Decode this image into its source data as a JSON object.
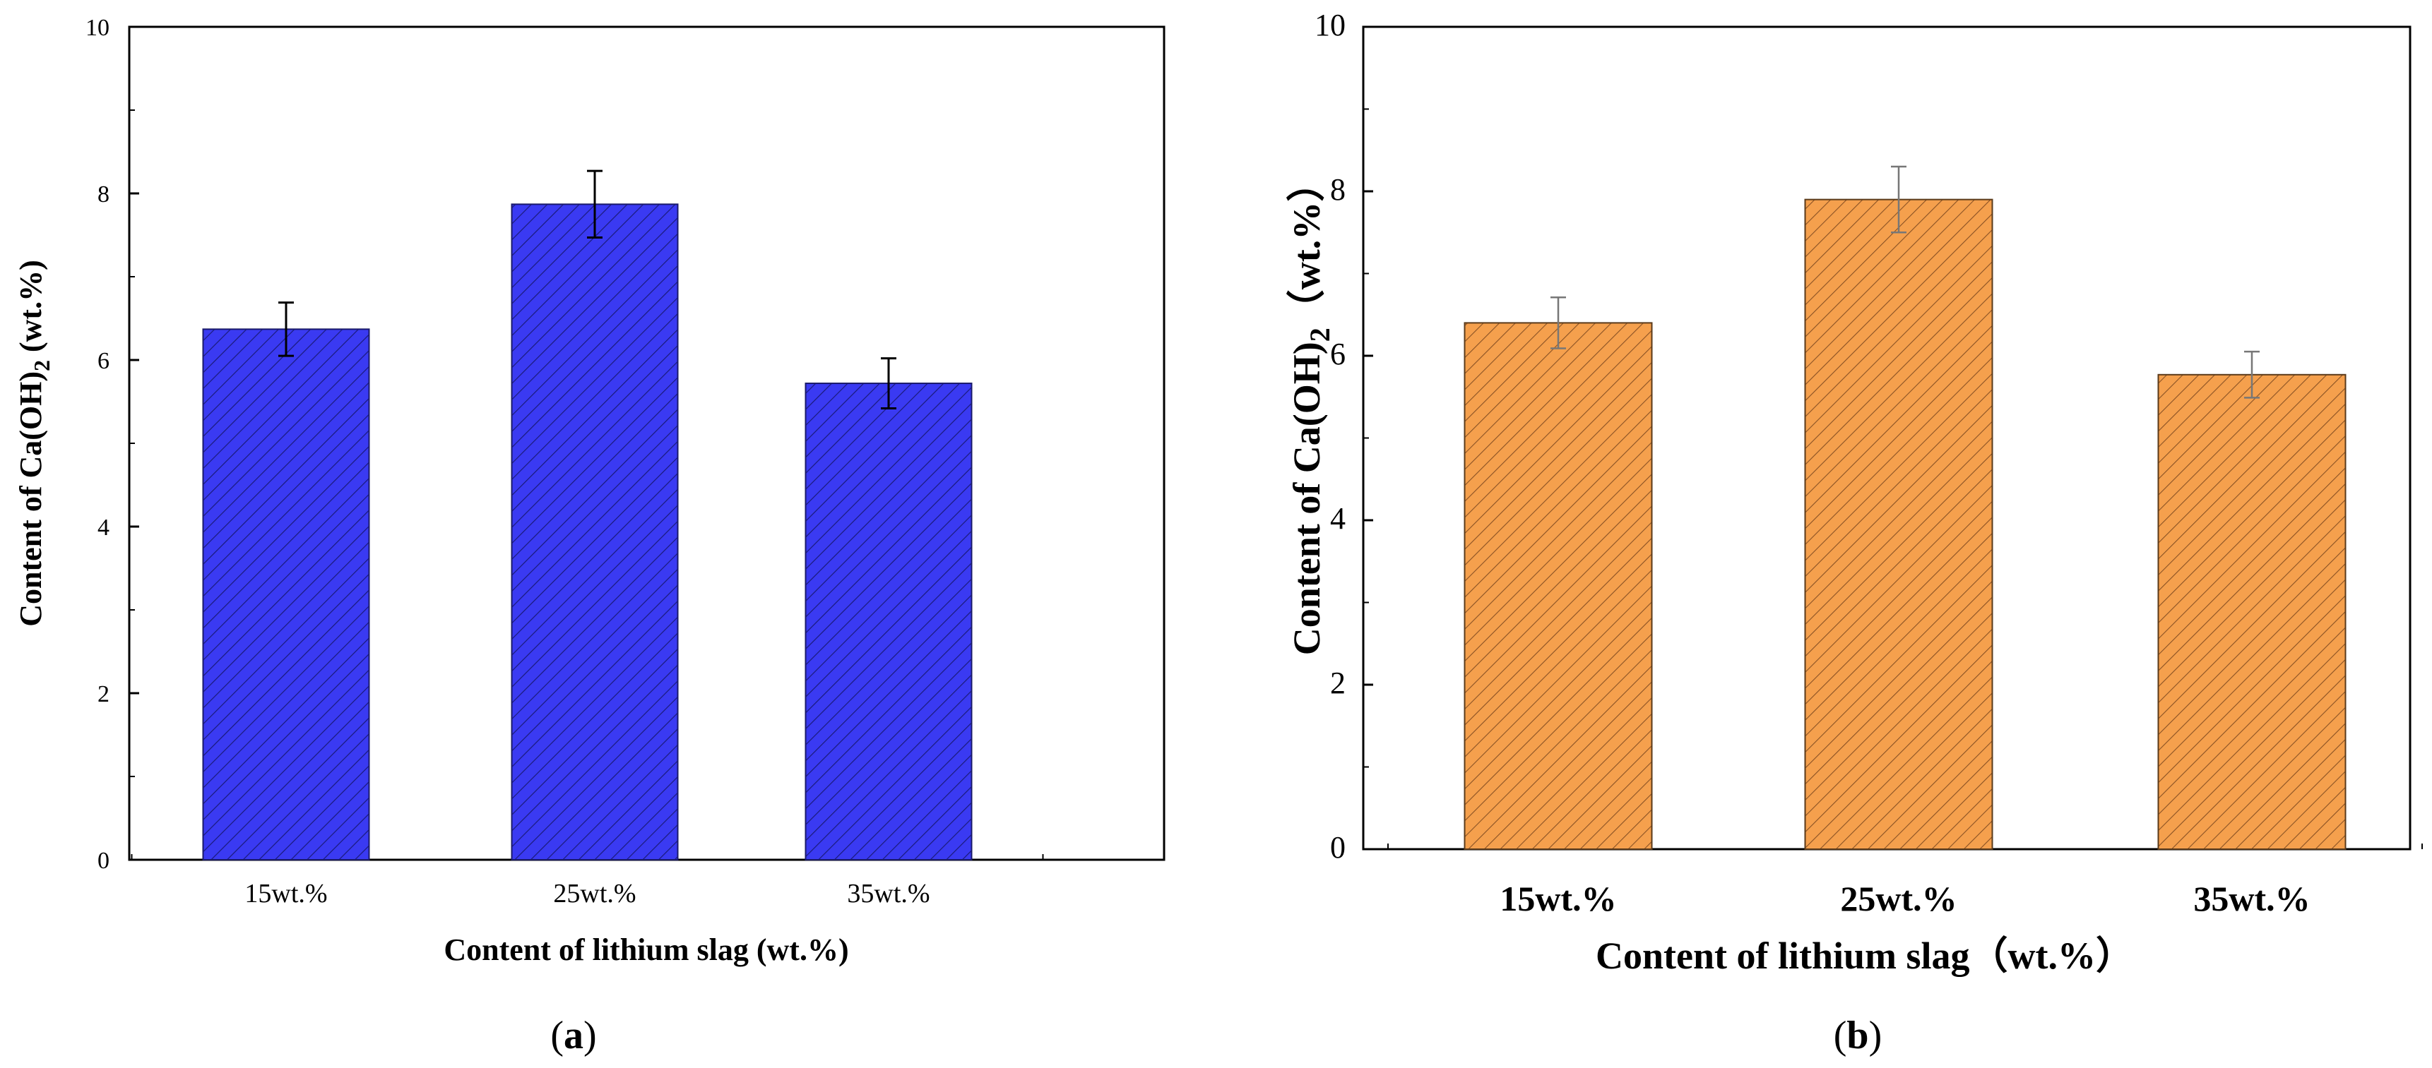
{
  "chart_data": [
    {
      "panel": "a",
      "type": "bar",
      "categories": [
        "15wt.%",
        "25wt.%",
        "35wt.%"
      ],
      "values": [
        6.37,
        7.87,
        5.72
      ],
      "errors": [
        0.32,
        0.4,
        0.3
      ],
      "xlabel": "Content of lithium slag (wt.%)",
      "ylabel": {
        "prefix": "Content of Ca(OH)",
        "sub": "2",
        "suffix": " (wt.%)"
      },
      "ylim": [
        0,
        10
      ],
      "yticks": [
        "0",
        "2",
        "4",
        "6",
        "8",
        "10"
      ],
      "bar_color": "#3636f0",
      "panel_label": {
        "open": "(",
        "letter": "a",
        "close": ")"
      }
    },
    {
      "panel": "b",
      "type": "bar",
      "categories": [
        "15wt.%",
        "25wt.%",
        "35wt.%"
      ],
      "values": [
        6.4,
        7.9,
        5.77
      ],
      "errors": [
        0.31,
        0.4,
        0.28
      ],
      "xlabel": "Content of lithium slag（wt.%）",
      "ylabel": {
        "prefix": "Content of  Ca(OH)",
        "sub": "2",
        "suffix": "（wt.%）"
      },
      "ylim": [
        0,
        10
      ],
      "yticks": [
        "0",
        "2",
        "4",
        "6",
        "8",
        "10"
      ],
      "bar_color": "#f5a04d",
      "panel_label": {
        "open": "(",
        "letter": "b",
        "close": ")"
      }
    }
  ]
}
